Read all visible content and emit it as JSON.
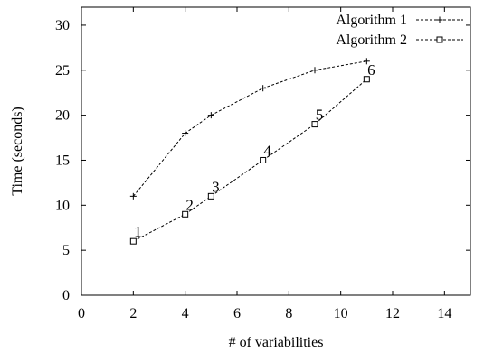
{
  "chart_data": {
    "type": "line",
    "title": "",
    "xlabel": "# of variabilities",
    "ylabel": "Time (seconds)",
    "xlim": [
      0,
      15
    ],
    "ylim": [
      0,
      32
    ],
    "xticks": [
      0,
      2,
      4,
      6,
      8,
      10,
      12,
      14
    ],
    "yticks": [
      0,
      5,
      10,
      15,
      20,
      25,
      30
    ],
    "grid": false,
    "legend_position": "top-right",
    "series": [
      {
        "name": "Algorithm 1",
        "marker": "plus",
        "line_style": "dashed",
        "color": "#000000",
        "x": [
          2,
          4,
          5,
          7,
          9,
          11
        ],
        "y": [
          11,
          18,
          20,
          23,
          25,
          26
        ]
      },
      {
        "name": "Algorithm 2",
        "marker": "square",
        "line_style": "dashed",
        "color": "#000000",
        "x": [
          2,
          4,
          5,
          7,
          9,
          11
        ],
        "y": [
          6,
          9,
          11,
          15,
          19,
          24
        ]
      }
    ],
    "annotations": [
      {
        "text": "1",
        "x": 2,
        "y": 6
      },
      {
        "text": "2",
        "x": 4,
        "y": 9
      },
      {
        "text": "3",
        "x": 5,
        "y": 11
      },
      {
        "text": "4",
        "x": 7,
        "y": 15
      },
      {
        "text": "5",
        "x": 9,
        "y": 19
      },
      {
        "text": "6",
        "x": 11,
        "y": 24
      }
    ]
  }
}
